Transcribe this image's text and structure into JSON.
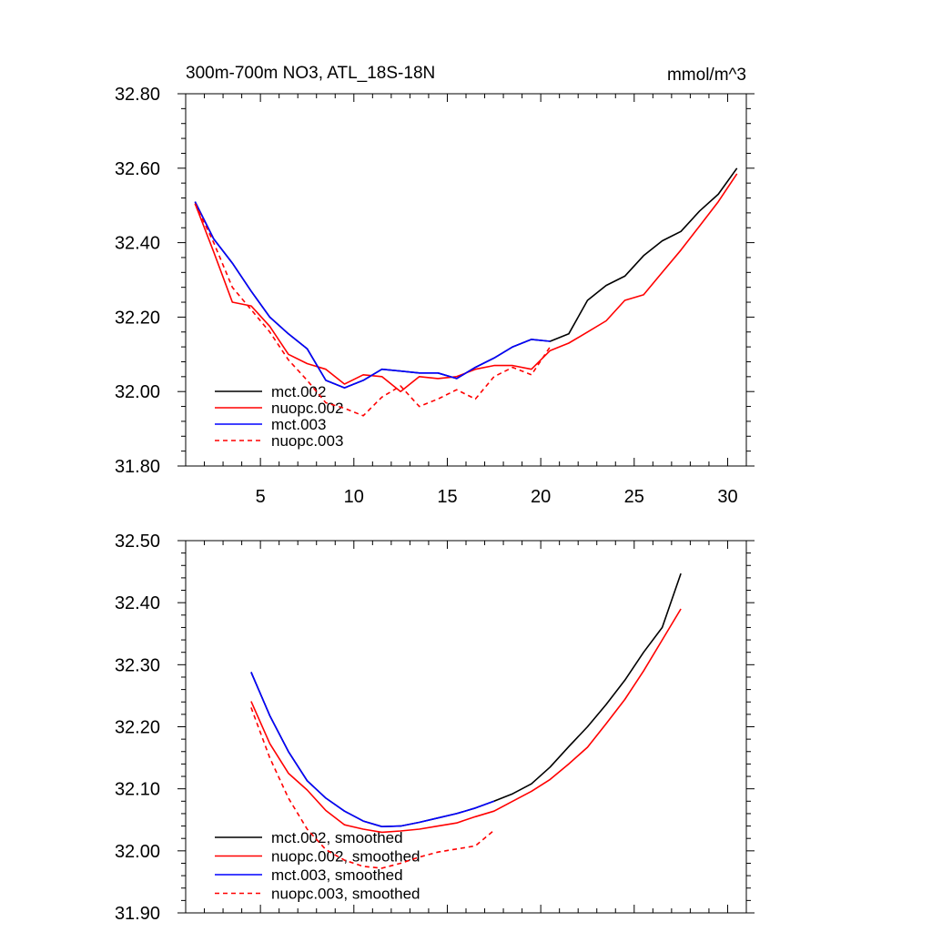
{
  "chart_data": [
    {
      "type": "line",
      "title": "300m-700m NO3, ATL_18S-18N",
      "units": "mmol/m^3",
      "xlim": [
        1,
        31
      ],
      "ylim": [
        31.8,
        32.8
      ],
      "xticks": [
        {
          "value": 5,
          "label": "5"
        },
        {
          "value": 10,
          "label": "10"
        },
        {
          "value": 15,
          "label": "15"
        },
        {
          "value": 20,
          "label": "20"
        },
        {
          "value": 25,
          "label": "25"
        },
        {
          "value": 30,
          "label": "30"
        }
      ],
      "yticks": [
        {
          "value": 31.8,
          "label": "31.80"
        },
        {
          "value": 32.0,
          "label": "32.00"
        },
        {
          "value": 32.2,
          "label": "32.20"
        },
        {
          "value": 32.4,
          "label": "32.40"
        },
        {
          "value": 32.6,
          "label": "32.60"
        },
        {
          "value": 32.8,
          "label": "32.80"
        }
      ],
      "legend_position": "bottom-left",
      "series": [
        {
          "name": "mct.002",
          "color": "#000000",
          "dash": "solid",
          "x": [
            1.5,
            2.5,
            3.5,
            4.5,
            5.5,
            6.5,
            7.5,
            8.5,
            9.5,
            10.5,
            11.5,
            12.5,
            13.5,
            14.5,
            15.5,
            16.5,
            17.5,
            18.5,
            19.5,
            20.5,
            21.5,
            22.5,
            23.5,
            24.5,
            25.5,
            26.5,
            27.5,
            28.5,
            29.5,
            30.5
          ],
          "y": [
            32.51,
            32.41,
            32.345,
            32.27,
            32.2,
            32.155,
            32.115,
            32.03,
            32.01,
            32.03,
            32.06,
            32.055,
            32.05,
            32.05,
            32.035,
            32.065,
            32.09,
            32.12,
            32.14,
            32.135,
            32.155,
            32.245,
            32.285,
            32.31,
            32.365,
            32.405,
            32.43,
            32.485,
            32.53,
            32.6
          ]
        },
        {
          "name": "nuopc.002",
          "color": "#ff0000",
          "dash": "solid",
          "x": [
            1.5,
            2.5,
            3.5,
            4.5,
            5.5,
            6.5,
            7.5,
            8.5,
            9.5,
            10.5,
            11.5,
            12.5,
            13.5,
            14.5,
            15.5,
            16.5,
            17.5,
            18.5,
            19.5,
            20.5,
            21.5,
            22.5,
            23.5,
            24.5,
            25.5,
            26.5,
            27.5,
            28.5,
            29.5,
            30.5
          ],
          "y": [
            32.505,
            32.375,
            32.24,
            32.23,
            32.175,
            32.1,
            32.075,
            32.06,
            32.02,
            32.045,
            32.04,
            32.0,
            32.04,
            32.035,
            32.04,
            32.06,
            32.07,
            32.07,
            32.06,
            32.11,
            32.13,
            32.16,
            32.19,
            32.245,
            32.26,
            32.32,
            32.38,
            32.445,
            32.51,
            32.585
          ]
        },
        {
          "name": "mct.003",
          "color": "#0000ff",
          "dash": "solid",
          "x": [
            1.5,
            2.5,
            3.5,
            4.5,
            5.5,
            6.5,
            7.5,
            8.5,
            9.5,
            10.5,
            11.5,
            12.5,
            13.5,
            14.5,
            15.5,
            16.5,
            17.5,
            18.5,
            19.5,
            20.5
          ],
          "y": [
            32.51,
            32.41,
            32.345,
            32.27,
            32.2,
            32.155,
            32.115,
            32.03,
            32.01,
            32.03,
            32.06,
            32.055,
            32.05,
            32.05,
            32.035,
            32.065,
            32.09,
            32.12,
            32.14,
            32.135
          ]
        },
        {
          "name": "nuopc.003",
          "color": "#ff0000",
          "dash": "dashed",
          "x": [
            1.5,
            2.5,
            3.5,
            4.5,
            5.5,
            6.5,
            7.5,
            8.5,
            9.5,
            10.5,
            11.5,
            12.5,
            13.5,
            14.5,
            15.5,
            16.5,
            17.5,
            18.5,
            19.5,
            20.5
          ],
          "y": [
            32.505,
            32.4,
            32.28,
            32.22,
            32.16,
            32.085,
            32.03,
            31.97,
            31.955,
            31.935,
            31.985,
            32.015,
            31.96,
            31.98,
            32.005,
            31.98,
            32.04,
            32.065,
            32.045,
            32.12
          ]
        }
      ]
    },
    {
      "type": "line",
      "title": "",
      "xlim": [
        1,
        31
      ],
      "ylim": [
        31.9,
        32.5
      ],
      "xticks": [
        {
          "value": 5,
          "label": ""
        },
        {
          "value": 10,
          "label": ""
        },
        {
          "value": 15,
          "label": ""
        },
        {
          "value": 20,
          "label": ""
        },
        {
          "value": 25,
          "label": ""
        },
        {
          "value": 30,
          "label": ""
        }
      ],
      "yticks": [
        {
          "value": 31.9,
          "label": "31.90"
        },
        {
          "value": 32.0,
          "label": "32.00"
        },
        {
          "value": 32.1,
          "label": "32.10"
        },
        {
          "value": 32.2,
          "label": "32.20"
        },
        {
          "value": 32.3,
          "label": "32.30"
        },
        {
          "value": 32.4,
          "label": "32.40"
        },
        {
          "value": 32.5,
          "label": "32.50"
        }
      ],
      "legend_position": "bottom-left",
      "series": [
        {
          "name": "mct.002, smoothed",
          "color": "#000000",
          "dash": "solid",
          "x": [
            4.5,
            5.5,
            6.5,
            7.5,
            8.5,
            9.5,
            10.5,
            11.5,
            12.5,
            13.5,
            14.5,
            15.5,
            16.5,
            17.5,
            18.5,
            19.5,
            20.5,
            21.5,
            22.5,
            23.5,
            24.5,
            25.5,
            26.5,
            27.5
          ],
          "y": [
            32.288,
            32.218,
            32.16,
            32.113,
            32.085,
            32.064,
            32.048,
            32.039,
            32.04,
            32.046,
            32.053,
            32.06,
            32.069,
            32.08,
            32.092,
            32.108,
            32.135,
            32.168,
            32.2,
            32.236,
            32.275,
            32.32,
            32.36,
            32.447
          ]
        },
        {
          "name": "nuopc.002, smoothed",
          "color": "#ff0000",
          "dash": "solid",
          "x": [
            4.5,
            5.5,
            6.5,
            7.5,
            8.5,
            9.5,
            10.5,
            11.5,
            12.5,
            13.5,
            14.5,
            15.5,
            16.5,
            17.5,
            18.5,
            19.5,
            20.5,
            21.5,
            22.5,
            23.5,
            24.5,
            25.5,
            26.5,
            27.5
          ],
          "y": [
            32.241,
            32.173,
            32.125,
            32.098,
            32.065,
            32.042,
            32.035,
            32.03,
            32.032,
            32.035,
            32.04,
            32.045,
            32.055,
            32.064,
            32.08,
            32.096,
            32.115,
            32.14,
            32.167,
            32.205,
            32.244,
            32.29,
            32.34,
            32.39
          ]
        },
        {
          "name": "mct.003, smoothed",
          "color": "#0000ff",
          "dash": "solid",
          "x": [
            4.5,
            5.5,
            6.5,
            7.5,
            8.5,
            9.5,
            10.5,
            11.5,
            12.5,
            13.5,
            14.5,
            15.5,
            16.5,
            17.5
          ],
          "y": [
            32.288,
            32.218,
            32.16,
            32.113,
            32.085,
            32.064,
            32.048,
            32.039,
            32.04,
            32.046,
            32.053,
            32.06,
            32.069,
            32.08
          ]
        },
        {
          "name": "nuopc.003, smoothed",
          "color": "#ff0000",
          "dash": "dashed",
          "x": [
            4.5,
            5.5,
            6.5,
            7.5,
            8.5,
            9.5,
            10.5,
            11.5,
            12.5,
            13.5,
            14.5,
            15.5,
            16.5,
            17.5
          ],
          "y": [
            32.231,
            32.15,
            32.085,
            32.035,
            32.002,
            31.985,
            31.975,
            31.972,
            31.98,
            31.99,
            31.998,
            32.003,
            32.008,
            32.033
          ]
        }
      ]
    }
  ]
}
